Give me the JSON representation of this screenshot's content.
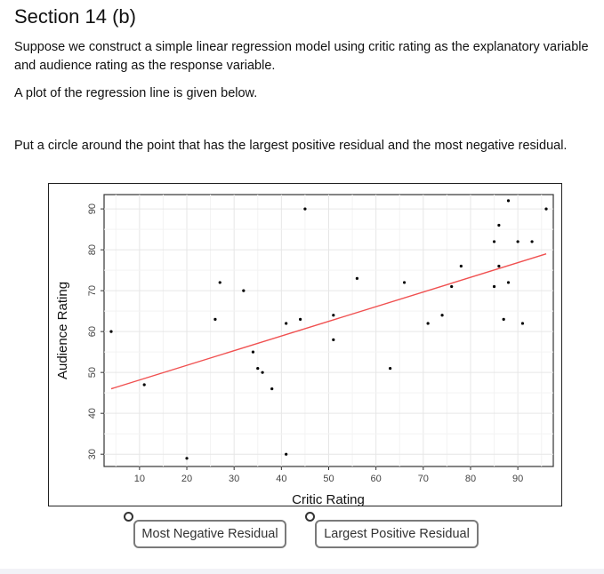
{
  "section": {
    "title": "Section 14 (b)",
    "intro": "Suppose we construct a simple linear regression model using critic rating as the explanatory variable and audience rating as the response variable.",
    "plot_note": "A plot of the regression line is given below.",
    "instruction": "Put a circle around the point that has the largest positive residual and the most negative residual."
  },
  "buttons": {
    "most_negative": "Most Negative Residual",
    "largest_positive": "Largest Positive Residual"
  },
  "chart_data": {
    "type": "scatter",
    "xlabel": "Critic Rating",
    "ylabel": "Audience Rating",
    "xlim": [
      2.5,
      97.5
    ],
    "ylim": [
      27,
      93.5
    ],
    "xticks": [
      10,
      20,
      30,
      40,
      50,
      60,
      70,
      80,
      90
    ],
    "yticks": [
      30,
      40,
      50,
      60,
      70,
      80,
      90
    ],
    "grid": true,
    "points": [
      {
        "x": 4,
        "y": 60
      },
      {
        "x": 11,
        "y": 47
      },
      {
        "x": 20,
        "y": 29
      },
      {
        "x": 26,
        "y": 63
      },
      {
        "x": 27,
        "y": 72
      },
      {
        "x": 32,
        "y": 70
      },
      {
        "x": 34,
        "y": 55
      },
      {
        "x": 35,
        "y": 51
      },
      {
        "x": 36,
        "y": 50
      },
      {
        "x": 38,
        "y": 46
      },
      {
        "x": 41,
        "y": 62
      },
      {
        "x": 41,
        "y": 30
      },
      {
        "x": 44,
        "y": 63
      },
      {
        "x": 45,
        "y": 90
      },
      {
        "x": 51,
        "y": 64
      },
      {
        "x": 51,
        "y": 58
      },
      {
        "x": 56,
        "y": 73
      },
      {
        "x": 63,
        "y": 51
      },
      {
        "x": 66,
        "y": 72
      },
      {
        "x": 71,
        "y": 62
      },
      {
        "x": 74,
        "y": 64
      },
      {
        "x": 76,
        "y": 71
      },
      {
        "x": 78,
        "y": 76
      },
      {
        "x": 85,
        "y": 82
      },
      {
        "x": 85,
        "y": 71
      },
      {
        "x": 86,
        "y": 86
      },
      {
        "x": 86,
        "y": 76
      },
      {
        "x": 87,
        "y": 63
      },
      {
        "x": 88,
        "y": 92
      },
      {
        "x": 88,
        "y": 72
      },
      {
        "x": 90,
        "y": 82
      },
      {
        "x": 91,
        "y": 62
      },
      {
        "x": 93,
        "y": 82
      },
      {
        "x": 96,
        "y": 90
      }
    ],
    "regression_line": {
      "x": [
        4,
        96
      ],
      "y": [
        46,
        79
      ],
      "color": "#f05050"
    },
    "point_color": "#000000"
  }
}
